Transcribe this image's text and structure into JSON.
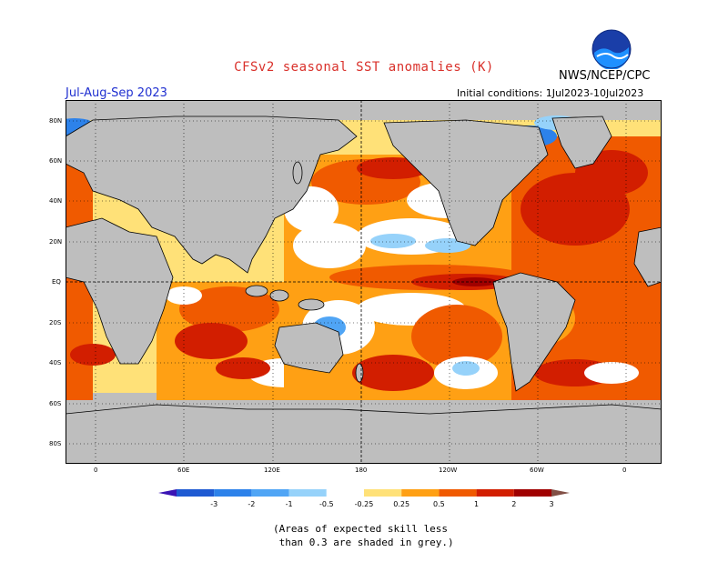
{
  "header": {
    "title": "CFSv2 seasonal SST anomalies (K)",
    "agency": "NWS/NCEP/CPC",
    "logo_text": "NOAA",
    "season": "Jul-Aug-Sep 2023",
    "initial_conditions": "Initial conditions: 1Jul2023-10Jul2023"
  },
  "map": {
    "projection": "cylindrical equidistant",
    "grid": "dotted",
    "lat_labels": [
      "80N",
      "60N",
      "40N",
      "20N",
      "EQ",
      "20S",
      "40S",
      "60S",
      "80S"
    ],
    "lon_labels": [
      "0",
      "60E",
      "120E",
      "180",
      "120W",
      "60W",
      "0"
    ],
    "land_color": "#bebebe",
    "low_skill_color": "#bebebe",
    "features": [
      {
        "name": "El Nino warm tongue (eastern equatorial Pacific)",
        "anomaly_min": 2,
        "anomaly_max": 3
      },
      {
        "name": "North Atlantic",
        "anomaly_min": 1,
        "anomaly_max": 2
      },
      {
        "name": "North Pacific",
        "anomaly_min": 0.5,
        "anomaly_max": 2
      },
      {
        "name": "Western tropical Pacific",
        "anomaly_min": -0.5,
        "anomaly_max": 0.5
      }
    ]
  },
  "colorbar": {
    "labels": [
      "-3",
      "-2",
      "-1",
      "-0.5",
      "-0.25",
      "0.25",
      "0.5",
      "1",
      "2",
      "3"
    ],
    "colors": [
      "#3a14b4",
      "#1e5ad2",
      "#2d82ea",
      "#50a5f5",
      "#96d2fa",
      "#ffffff",
      "#ffe178",
      "#ffa014",
      "#f05a00",
      "#d21e00",
      "#a00000",
      "#825046"
    ]
  },
  "footnote": {
    "line1": "(Areas of expected skill less",
    "line2": " than 0.3 are shaded in grey.)"
  }
}
